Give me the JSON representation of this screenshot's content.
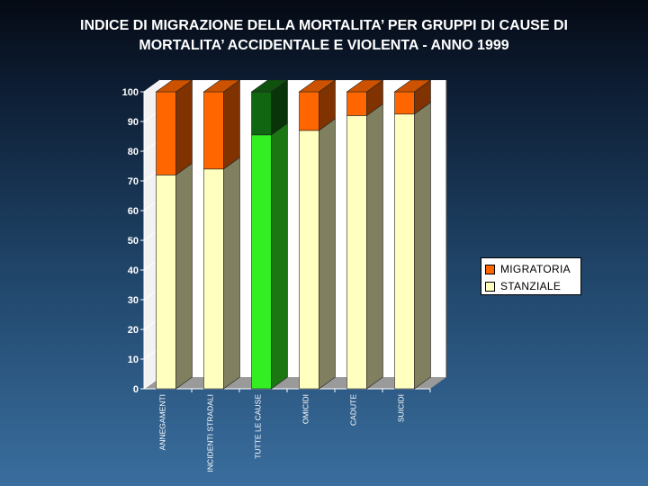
{
  "title_line1": "INDICE DI MIGRAZIONE DELLA MORTALITA’ PER GRUPPI DI CAUSE DI",
  "title_line2": "MORTALITA’ ACCIDENTALE E VIOLENTA - ANNO 1999",
  "chart_data": {
    "type": "bar",
    "stacked": true,
    "three_d": true,
    "categories": [
      "ANNEGAMENTI",
      "INCIDENTI STRADALI",
      "TUTTE LE CAUSE",
      "OMICIDI",
      "CADUTE",
      "SUICIDI"
    ],
    "series": [
      {
        "name": "STANZIALE",
        "values": [
          72,
          74,
          85.5,
          87,
          92,
          92.5
        ]
      },
      {
        "name": "MIGRATORIA",
        "values": [
          28,
          26,
          14.5,
          13,
          8,
          7.5
        ]
      }
    ],
    "ylim": [
      0,
      100
    ],
    "yticks": [
      "0",
      "10",
      "20",
      "30",
      "40",
      "50",
      "60",
      "70",
      "80",
      "90",
      "100"
    ],
    "legend_position": "right",
    "colors": {
      "STANZIALE": "#ffffc0",
      "MIGRATORIA": "#ff6600",
      "highlight_bottom": "#33ee22",
      "highlight_top": "#116611",
      "wall": "#ffffff",
      "floor": "#9a9a9a"
    },
    "highlight_category": "TUTTE LE CAUSE"
  },
  "legend": [
    {
      "label": "MIGRATORIA",
      "color": "#ff6600"
    },
    {
      "label": "STANZIALE",
      "color": "#ffffc0"
    }
  ]
}
